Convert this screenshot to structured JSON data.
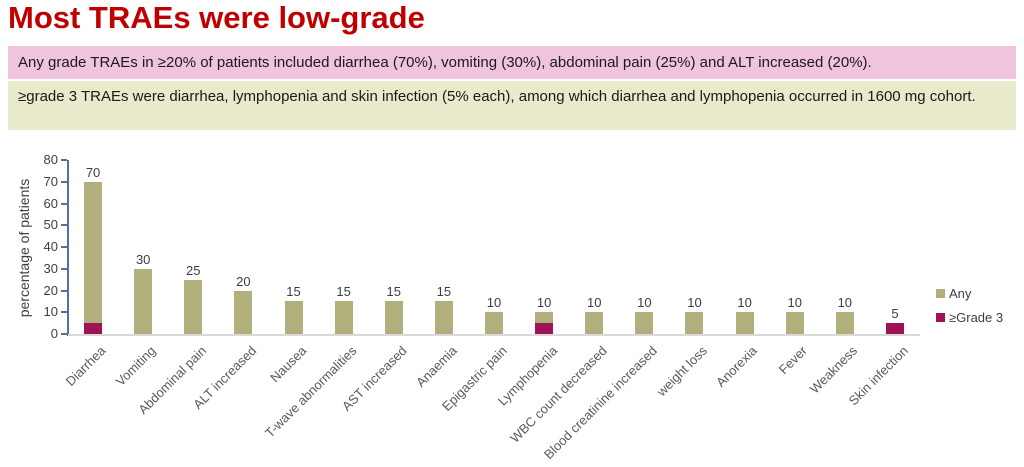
{
  "title": "Most TRAEs were low-grade",
  "title_color": "#c00000",
  "banners": {
    "any_grade": {
      "text": "Any grade TRAEs in ≥20% of patients included diarrhea (70%), vomiting (30%), abdominal pain (25%) and ALT increased (20%).",
      "bg": "#f0c4dd"
    },
    "grade3": {
      "text": "≥grade 3 TRAEs were diarrhea, lymphopenia and skin infection (5% each), among which diarrhea and lymphopenia occurred in 1600 mg cohort.",
      "bg": "#e9e9cb"
    }
  },
  "chart_data": {
    "type": "bar",
    "title": "",
    "xlabel": "",
    "ylabel": "percentage of patients",
    "ylim": [
      0,
      80
    ],
    "yticks": [
      0,
      10,
      20,
      30,
      40,
      50,
      60,
      70,
      80
    ],
    "grid": false,
    "legend_position": "right",
    "axis_color": "#5b6bab",
    "baseline_color": "#d9d9d9",
    "categories": [
      "Diarrhea",
      "Vomiting",
      "Abdominal pain",
      "ALT increased",
      "Nausea",
      "T-wave abnormalities",
      "AST increased",
      "Anaemia",
      "Epigastric pain",
      "Lymphopenia",
      "WBC count decreased",
      "Blood creatinine increased",
      "weight loss",
      "Anorexia",
      "Fever",
      "Weakness",
      "Skin infection"
    ],
    "series": [
      {
        "name": "Any",
        "color": "#b1b07d",
        "values": [
          70,
          30,
          25,
          20,
          15,
          15,
          15,
          15,
          10,
          10,
          10,
          10,
          10,
          10,
          10,
          10,
          5
        ]
      },
      {
        "name": "≥Grade 3",
        "color": "#9e1356",
        "values": [
          5,
          0,
          0,
          0,
          0,
          0,
          0,
          0,
          0,
          5,
          0,
          0,
          0,
          0,
          0,
          0,
          5
        ]
      }
    ],
    "bar_value_labels": [
      "70",
      "30",
      "25",
      "20",
      "15",
      "15",
      "15",
      "15",
      "10",
      "10",
      "10",
      "10",
      "10",
      "10",
      "10",
      "10",
      "5"
    ]
  }
}
